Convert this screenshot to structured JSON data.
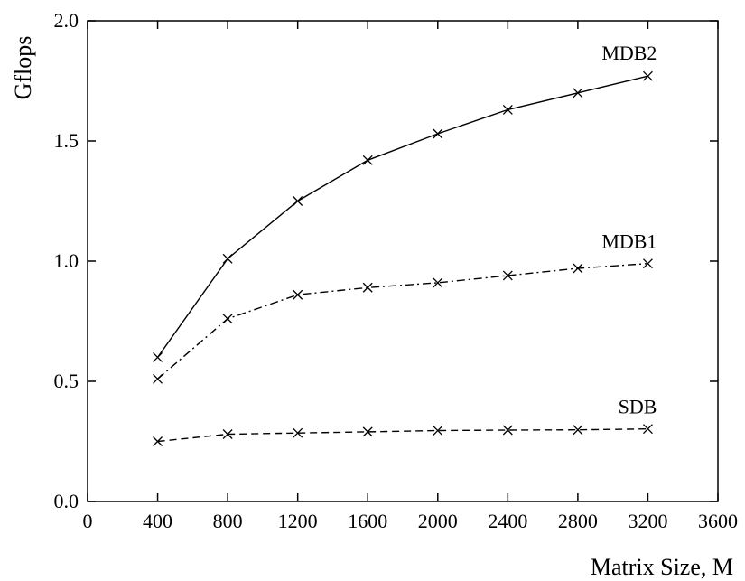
{
  "chart_data": {
    "type": "line",
    "title": "",
    "xlabel": "Matrix Size, M",
    "ylabel": "Gflops",
    "xlim": [
      0,
      3600
    ],
    "ylim": [
      0,
      2.0
    ],
    "xticks": [
      0,
      400,
      800,
      1200,
      1600,
      2000,
      2400,
      2800,
      3200,
      3600
    ],
    "yticks": [
      0.0,
      0.5,
      1.0,
      1.5,
      2.0
    ],
    "xtick_labels": [
      "0",
      "400",
      "800",
      "1200",
      "1600",
      "2000",
      "2400",
      "2800",
      "3200",
      "3600"
    ],
    "ytick_labels": [
      "0.0",
      "0.5",
      "1.0",
      "1.5",
      "2.0"
    ],
    "grid": false,
    "legend": "inline labels at line ends",
    "marker": "x",
    "x": [
      400,
      800,
      1200,
      1600,
      2000,
      2400,
      2800,
      3200
    ],
    "series": [
      {
        "name": "MDB2",
        "line_style": "solid",
        "color": "#000000",
        "values": [
          0.6,
          1.01,
          1.25,
          1.42,
          1.53,
          1.63,
          1.7,
          1.77
        ]
      },
      {
        "name": "MDB1",
        "line_style": "dash-dot",
        "color": "#000000",
        "values": [
          0.51,
          0.76,
          0.86,
          0.89,
          0.91,
          0.94,
          0.97,
          0.99
        ]
      },
      {
        "name": "SDB",
        "line_style": "dashed",
        "color": "#000000",
        "values": [
          0.25,
          0.28,
          0.285,
          0.29,
          0.295,
          0.297,
          0.298,
          0.302
        ]
      }
    ]
  }
}
